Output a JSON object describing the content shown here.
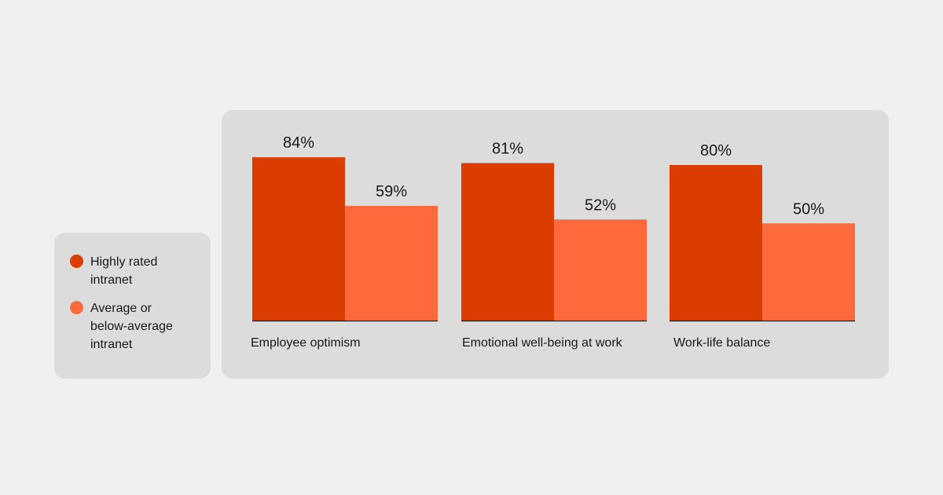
{
  "chart_data": {
    "type": "bar",
    "categories": [
      "Employee optimism",
      "Emotional well-being at work",
      "Work-life balance"
    ],
    "series": [
      {
        "name": "Highly rated intranet",
        "values": [
          84,
          81,
          80
        ],
        "labels": [
          "84%",
          "81%",
          "80%"
        ],
        "color": "#db3c00"
      },
      {
        "name": "Average or below-average intranet",
        "values": [
          59,
          52,
          50
        ],
        "labels": [
          "59%",
          "52%",
          "50%"
        ],
        "color": "#ff6a3d"
      }
    ],
    "title": "",
    "xlabel": "",
    "ylabel": "",
    "ylim": [
      0,
      100
    ],
    "grid": false,
    "legend_position": "left"
  },
  "legend": {
    "items": [
      {
        "lines": [
          "Highly rated",
          "intranet"
        ],
        "color": "#db3c00"
      },
      {
        "lines": [
          "Average or",
          "below-average",
          "intranet"
        ],
        "color": "#ff6a3d"
      }
    ]
  },
  "colors": {
    "background": "#f0f0f0",
    "panel": "#dcdcdc",
    "axis": "#222222"
  }
}
